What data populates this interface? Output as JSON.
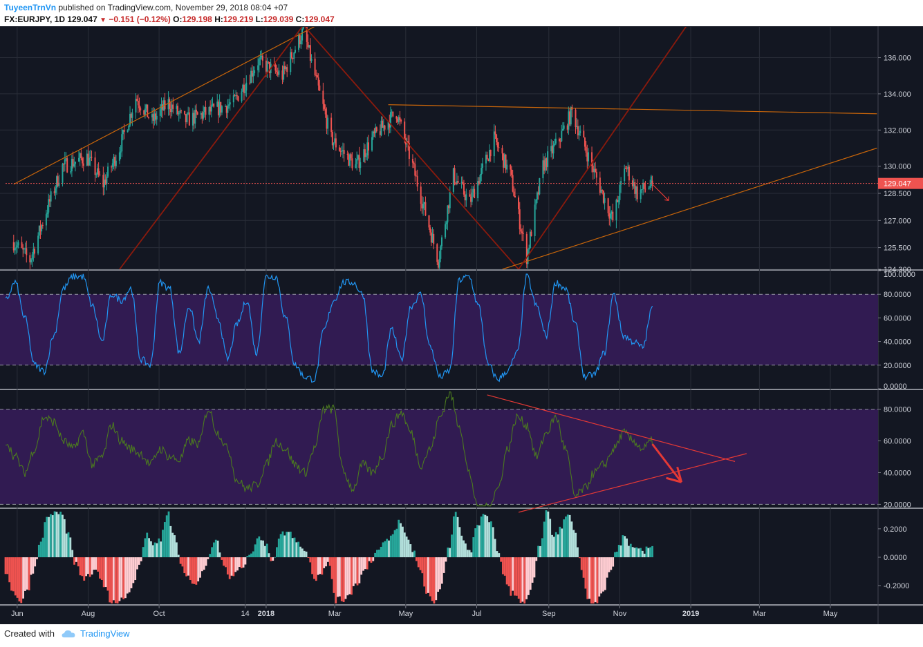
{
  "header": {
    "user": "TuyeenTrnVn",
    "published": "published on TradingView.com, November 29, 2018 08:04 +07",
    "symbol": "FX:EURJPY, 1D",
    "last": "129.047",
    "change": "−0.151 (−0.12%)",
    "o_label": "O:",
    "o": "129.198",
    "h_label": "H:",
    "h": "129.219",
    "l_label": "L:",
    "l": "129.039",
    "c_label": "C:",
    "c": "129.047"
  },
  "footer": {
    "created": "Created with",
    "brand": "TradingView"
  },
  "colors": {
    "background": "#131722",
    "grid": "#2a2e39",
    "up": "#26a69a",
    "down": "#ef5350",
    "rsi_line": "#2196f3",
    "rsi_band": "#311b52",
    "osc_line": "#4b7a1f",
    "hist_up": "#26a69a",
    "hist_up_light": "#b2dfdb",
    "hist_down": "#ef5350",
    "hist_down_light": "#ffcdd2",
    "trend_orange": "#c8650a",
    "trend_dark_red": "#8b1a0d",
    "trend_red": "#e53935"
  },
  "chart_data": [
    {
      "type": "candlestick",
      "title": "FX:EURJPY, 1D",
      "x_ticks": [
        "Jun",
        "Aug",
        "Oct",
        "14",
        "2018",
        "Mar",
        "May",
        "Jul",
        "Sep",
        "Nov",
        "2019",
        "Mar",
        "May"
      ],
      "y_ticks": [
        "136.000",
        "134.000",
        "132.000",
        "130.000",
        "128.500",
        "127.000",
        "125.500",
        "124.300"
      ],
      "ylim": [
        124.3,
        137.7
      ],
      "last_price_label": "129.047",
      "last_price": 129.047,
      "path_points": [
        [
          "2017-05-29",
          125.8
        ],
        [
          "2017-06-12",
          124.8
        ],
        [
          "2017-06-26",
          127.5
        ],
        [
          "2017-07-10",
          130.0
        ],
        [
          "2017-07-31",
          130.5
        ],
        [
          "2017-08-14",
          129.0
        ],
        [
          "2017-08-28",
          131.0
        ],
        [
          "2017-09-11",
          133.8
        ],
        [
          "2017-09-25",
          132.5
        ],
        [
          "2017-10-09",
          133.5
        ],
        [
          "2017-10-23",
          132.5
        ],
        [
          "2017-11-13",
          133.0
        ],
        [
          "2017-12-04",
          133.5
        ],
        [
          "2017-12-25",
          135.8
        ],
        [
          "2018-01-15",
          135.0
        ],
        [
          "2018-02-02",
          137.5
        ],
        [
          "2018-02-26",
          131.5
        ],
        [
          "2018-03-19",
          130.0
        ],
        [
          "2018-04-02",
          131.5
        ],
        [
          "2018-04-23",
          133.0
        ],
        [
          "2018-05-07",
          130.0
        ],
        [
          "2018-05-29",
          124.8
        ],
        [
          "2018-06-11",
          129.5
        ],
        [
          "2018-06-25",
          128.0
        ],
        [
          "2018-07-16",
          131.5
        ],
        [
          "2018-07-30",
          129.5
        ],
        [
          "2018-08-13",
          125.0
        ],
        [
          "2018-08-27",
          130.0
        ],
        [
          "2018-09-10",
          131.5
        ],
        [
          "2018-09-21",
          133.0
        ],
        [
          "2018-10-08",
          130.0
        ],
        [
          "2018-10-26",
          127.0
        ],
        [
          "2018-11-06",
          130.0
        ],
        [
          "2018-11-16",
          128.5
        ],
        [
          "2018-11-29",
          129.047
        ]
      ],
      "trendlines": [
        {
          "from": [
            "2017-05-29",
            129.0
          ],
          "to": [
            "2018-02-14",
            137.8
          ]
        },
        {
          "from": [
            "2017-08-28",
            124.3
          ],
          "to": [
            "2018-02-02",
            137.8
          ]
        },
        {
          "from": [
            "2018-02-02",
            137.8
          ],
          "to": [
            "2018-08-06",
            124.3
          ]
        },
        {
          "from": [
            "2018-04-16",
            133.4
          ],
          "to": [
            "2019-06-10",
            132.9
          ]
        },
        {
          "from": [
            "2018-07-23",
            124.3
          ],
          "to": [
            "2019-06-10",
            131.0
          ]
        },
        {
          "from": [
            "2018-08-06",
            124.3
          ],
          "to": [
            "2018-12-31",
            138.0
          ]
        }
      ],
      "arrow": {
        "from": [
          "2018-11-29",
          129.0
        ],
        "to": [
          "2018-12-13",
          128.1
        ]
      }
    },
    {
      "type": "line",
      "name": "RSI pane",
      "y_ticks": [
        "100.0000",
        "80.0000",
        "60.0000",
        "40.0000",
        "20.0000",
        "0.0000"
      ],
      "ylim": [
        0,
        100
      ],
      "band": [
        20,
        80
      ],
      "values": [
        75,
        90,
        60,
        20,
        15,
        45,
        85,
        95,
        95,
        70,
        40,
        80,
        75,
        85,
        25,
        20,
        90,
        85,
        30,
        70,
        40,
        85,
        60,
        25,
        55,
        75,
        30,
        95,
        95,
        60,
        20,
        10,
        8,
        50,
        75,
        90,
        90,
        80,
        15,
        10,
        50,
        25,
        70,
        80,
        35,
        10,
        15,
        92,
        95,
        70,
        20,
        8,
        15,
        30,
        95,
        70,
        45,
        90,
        85,
        55,
        10,
        12,
        30,
        80,
        45,
        40,
        35,
        68
      ]
    },
    {
      "type": "line",
      "name": "Oscillator pane",
      "y_ticks": [
        "80.0000",
        "60.0000",
        "40.0000",
        "20.0000"
      ],
      "ylim": [
        18,
        92
      ],
      "band": [
        20,
        80
      ],
      "values": [
        60,
        50,
        40,
        55,
        75,
        72,
        60,
        55,
        65,
        45,
        50,
        70,
        60,
        55,
        52,
        45,
        55,
        50,
        48,
        60,
        58,
        80,
        65,
        55,
        35,
        30,
        32,
        45,
        60,
        55,
        45,
        40,
        55,
        80,
        80,
        40,
        30,
        45,
        40,
        50,
        70,
        78,
        65,
        45,
        55,
        75,
        90,
        70,
        40,
        15,
        18,
        30,
        55,
        75,
        70,
        50,
        65,
        75,
        55,
        25,
        30,
        40,
        45,
        55,
        65,
        60,
        55,
        60
      ],
      "trendlines": [
        {
          "from": [
            "2018-07-10",
            89
          ],
          "to": [
            "2019-02-08",
            47
          ]
        },
        {
          "from": [
            "2018-08-06",
            15
          ],
          "to": [
            "2019-02-18",
            52
          ]
        }
      ],
      "arrow": {
        "from": [
          "2018-11-29",
          58
        ],
        "to": [
          "2018-12-24",
          34
        ]
      }
    },
    {
      "type": "bar",
      "name": "Histogram pane",
      "y_ticks": [
        "0.2000",
        "0.0000",
        "-0.2000"
      ],
      "ylim": [
        -0.33,
        0.34
      ],
      "values": [
        -0.1,
        -0.25,
        -0.32,
        -0.25,
        -0.1,
        0.1,
        0.3,
        0.3,
        0.3,
        0.15,
        -0.05,
        -0.15,
        -0.12,
        -0.1,
        -0.2,
        -0.3,
        -0.32,
        -0.28,
        -0.2,
        -0.05,
        0.15,
        0.1,
        0.12,
        0.32,
        0.15,
        -0.05,
        -0.15,
        -0.2,
        -0.1,
        0.02,
        0.12,
        -0.05,
        -0.15,
        -0.1,
        -0.05,
        0.05,
        0.15,
        0.08,
        -0.02,
        0.15,
        0.18,
        0.15,
        0.08,
        0.02,
        -0.15,
        -0.1,
        -0.05,
        -0.3,
        -0.3,
        -0.25,
        -0.18,
        -0.1,
        -0.02,
        0.05,
        0.1,
        0.15,
        0.25,
        0.15,
        0.05,
        -0.1,
        -0.25,
        -0.32,
        -0.2,
        0.05,
        0.3,
        0.15,
        0.03,
        0.2,
        0.32,
        0.25,
        0.05,
        -0.15,
        -0.25,
        -0.3,
        -0.32,
        -0.2,
        0.1,
        0.32,
        0.15,
        0.2,
        0.32,
        0.18,
        -0.1,
        -0.3,
        -0.32,
        -0.25,
        -0.1,
        0.05,
        0.15,
        0.08,
        0.04,
        0.05,
        0.1
      ]
    }
  ]
}
